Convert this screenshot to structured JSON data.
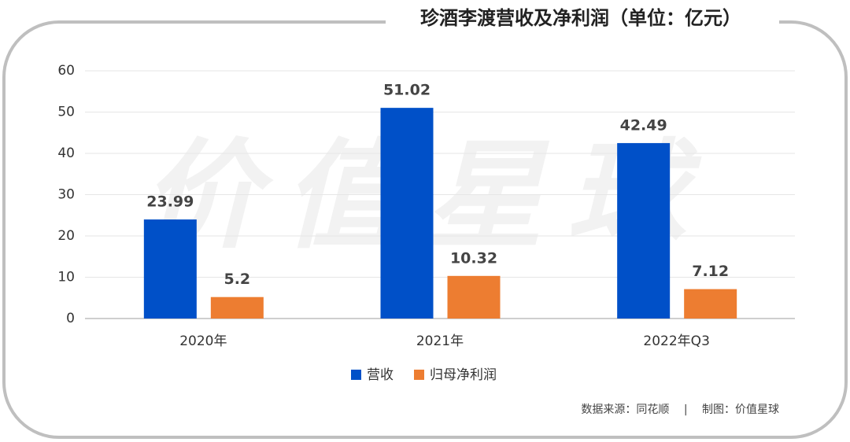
{
  "chart_data": {
    "type": "bar",
    "title": "珍酒李渡营收及净利润（单位：亿元）",
    "watermark": "价值星球",
    "categories": [
      "2020年",
      "2021年",
      "2022年Q3"
    ],
    "series": [
      {
        "name": "营收",
        "color": "#0050c8",
        "values": [
          23.99,
          51.02,
          42.49
        ]
      },
      {
        "name": "归母净利润",
        "color": "#ed7d31",
        "values": [
          5.2,
          10.32,
          7.12
        ]
      }
    ],
    "ylim": [
      0,
      60
    ],
    "yticks": [
      0,
      10,
      20,
      30,
      40,
      50,
      60
    ],
    "grid": true,
    "legend": "bottom",
    "source": "数据来源：同花顺　 |　 制图：价值星球"
  }
}
